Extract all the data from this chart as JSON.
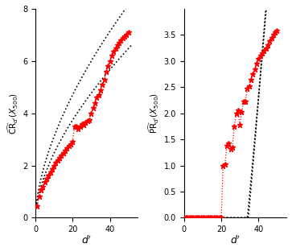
{
  "left_ylabel": "$\\widehat{\\mathrm{CR}}_{d'}(X_{500})$",
  "right_ylabel": "$\\widehat{\\mathrm{PR}}_{d'}(X_{500})$",
  "xlabel": "$d'$",
  "left_xlim": [
    0,
    55
  ],
  "left_ylim": [
    0,
    8
  ],
  "right_xlim": [
    0,
    55
  ],
  "right_ylim": [
    0,
    4
  ],
  "left_xticks": [
    0,
    20,
    40
  ],
  "left_yticks": [
    0,
    2,
    4,
    6,
    8
  ],
  "right_xticks": [
    0,
    20,
    40
  ],
  "right_yticks": [
    0.0,
    0.5,
    1.0,
    1.5,
    2.0,
    2.5,
    3.0,
    3.5
  ],
  "cr_d": [
    1,
    2,
    3,
    4,
    5,
    6,
    7,
    8,
    9,
    10,
    11,
    12,
    13,
    14,
    15,
    16,
    17,
    18,
    19,
    20,
    21,
    22,
    23,
    24,
    25,
    26,
    27,
    28,
    29,
    30,
    31,
    32,
    33,
    34,
    35,
    36,
    37,
    38,
    39,
    40,
    41,
    42,
    43,
    44,
    45,
    46,
    47,
    48,
    49,
    50
  ],
  "cr_vals": [
    0.45,
    0.82,
    1.05,
    1.2,
    1.38,
    1.5,
    1.63,
    1.75,
    1.87,
    1.98,
    2.1,
    2.2,
    2.3,
    2.38,
    2.48,
    2.58,
    2.67,
    2.75,
    2.83,
    2.9,
    3.5,
    3.5,
    3.4,
    3.5,
    3.6,
    3.55,
    3.65,
    3.7,
    3.75,
    4.0,
    4.2,
    4.4,
    4.6,
    4.7,
    4.9,
    5.1,
    5.3,
    5.6,
    5.8,
    6.0,
    6.2,
    6.35,
    6.5,
    6.6,
    6.7,
    6.8,
    6.88,
    6.95,
    7.02,
    7.1
  ],
  "cr_lower_scale": 0.62,
  "cr_lower_exp": 0.6,
  "cr_upper_scale": 0.78,
  "cr_upper_exp": 0.6,
  "pr_d_zero": [
    1,
    2,
    3,
    4,
    5,
    6,
    7,
    8,
    9,
    10,
    11,
    12,
    13,
    14,
    15,
    16,
    17,
    18,
    19,
    20
  ],
  "pr_d_nonzero": [
    21,
    22,
    23,
    24,
    25,
    26,
    27,
    28,
    29,
    30,
    31,
    32,
    33,
    34,
    35,
    36,
    37,
    38,
    39,
    40,
    41,
    42,
    43,
    44,
    45,
    46,
    47,
    48,
    49,
    50
  ],
  "pr_vals_nonzero": [
    1.0,
    1.02,
    1.38,
    1.42,
    1.32,
    1.35,
    1.75,
    2.0,
    2.05,
    1.78,
    2.02,
    2.22,
    2.22,
    2.48,
    2.52,
    2.65,
    2.75,
    2.85,
    2.95,
    3.05,
    3.1,
    3.15,
    3.2,
    3.25,
    3.3,
    3.38,
    3.45,
    3.5,
    3.55,
    3.58
  ],
  "pr_bound_jump": 34.0,
  "pr_bound_slope": 0.35,
  "pr_bound_exp": 1.05
}
